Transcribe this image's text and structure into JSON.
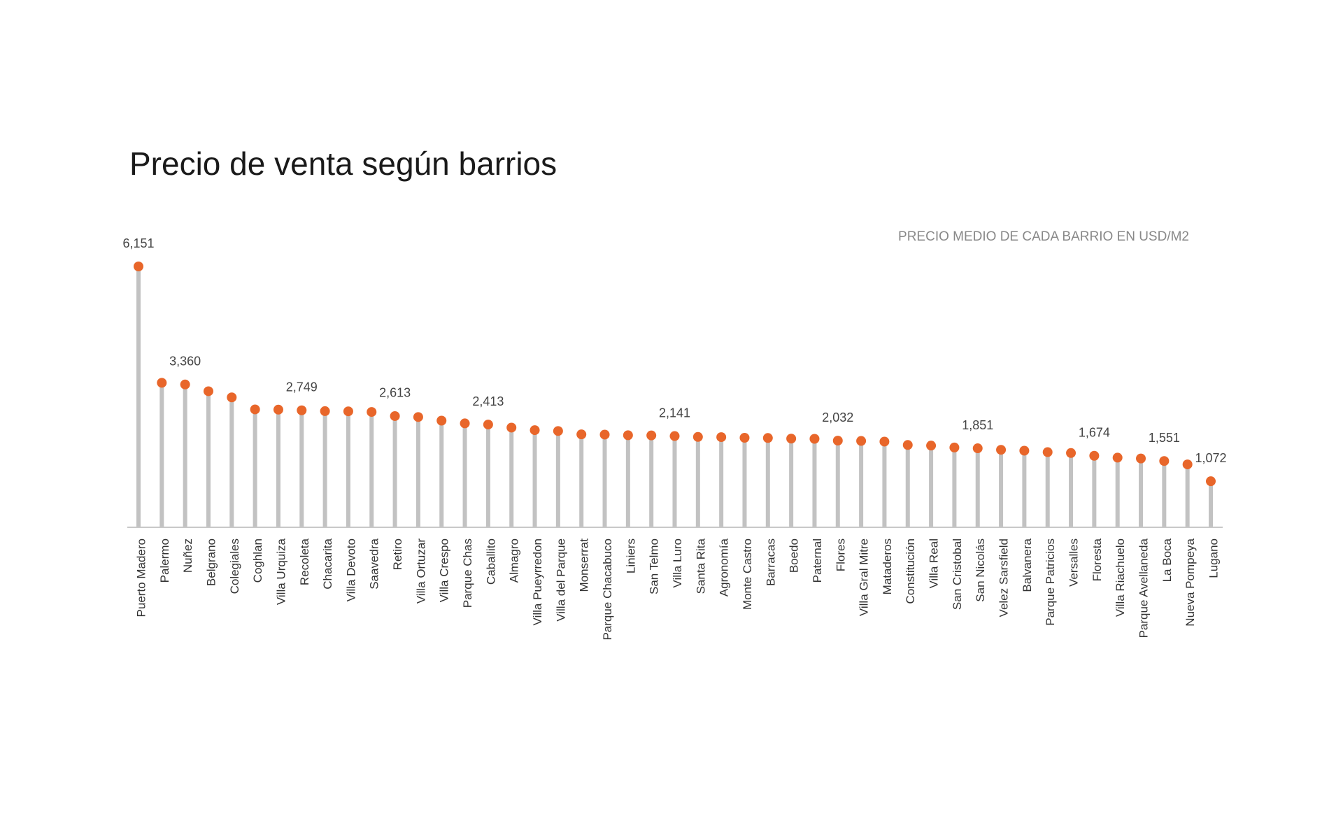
{
  "chart_data": {
    "type": "lollipop",
    "title": "Precio de venta según barrios",
    "subtitle": "PRECIO MEDIO DE CADA BARRIO EN USD/M2",
    "categories": [
      "Puerto Madero",
      "Palermo",
      "Nuñez",
      "Belgrano",
      "Colegiales",
      "Coghlan",
      "Villa Urquiza",
      "Recoleta",
      "Chacarita",
      "Villa Devoto",
      "Saavedra",
      "Retiro",
      "Villa Ortuzar",
      "Villa Crespo",
      "Parque Chas",
      "Caballito",
      "Almagro",
      "Villa Pueyrredon",
      "Villa del Parque",
      "Monserrat",
      "Parque Chacabuco",
      "Liniers",
      "San Telmo",
      "Villa Luro",
      "Santa Rita",
      "Agronomía",
      "Monte Castro",
      "Barracas",
      "Boedo",
      "Paternal",
      "Flores",
      "Villa Gral Mitre",
      "Mataderos",
      "Constitución",
      "Villa Real",
      "San Cristobal",
      "San Nicolás",
      "Velez Sarsfield",
      "Balvanera",
      "Parque Patricios",
      "Versalles",
      "Floresta",
      "Villa Riachuelo",
      "Parque Avellaneda",
      "La Boca",
      "Nueva Pompeya",
      "Lugano"
    ],
    "values": [
      6151,
      3400,
      3360,
      3200,
      3055,
      2770,
      2765,
      2749,
      2730,
      2725,
      2710,
      2613,
      2590,
      2505,
      2440,
      2413,
      2340,
      2280,
      2260,
      2180,
      2175,
      2160,
      2155,
      2141,
      2120,
      2115,
      2100,
      2095,
      2080,
      2075,
      2032,
      2025,
      2010,
      1930,
      1915,
      1870,
      1851,
      1815,
      1795,
      1760,
      1740,
      1674,
      1630,
      1610,
      1551,
      1470,
      1072
    ],
    "value_labels": [
      "6,151",
      null,
      "3,360",
      null,
      null,
      null,
      null,
      "2,749",
      null,
      null,
      null,
      "2,613",
      null,
      null,
      null,
      "2,413",
      null,
      null,
      null,
      null,
      null,
      null,
      null,
      "2,141",
      null,
      null,
      null,
      null,
      null,
      null,
      "2,032",
      null,
      null,
      null,
      null,
      null,
      "1,851",
      null,
      null,
      null,
      null,
      "1,674",
      null,
      null,
      "1,551",
      null,
      "1,072"
    ],
    "ylim": [
      0,
      6151
    ],
    "color": "#e8662a",
    "stem_color": "#c2c2c2"
  }
}
